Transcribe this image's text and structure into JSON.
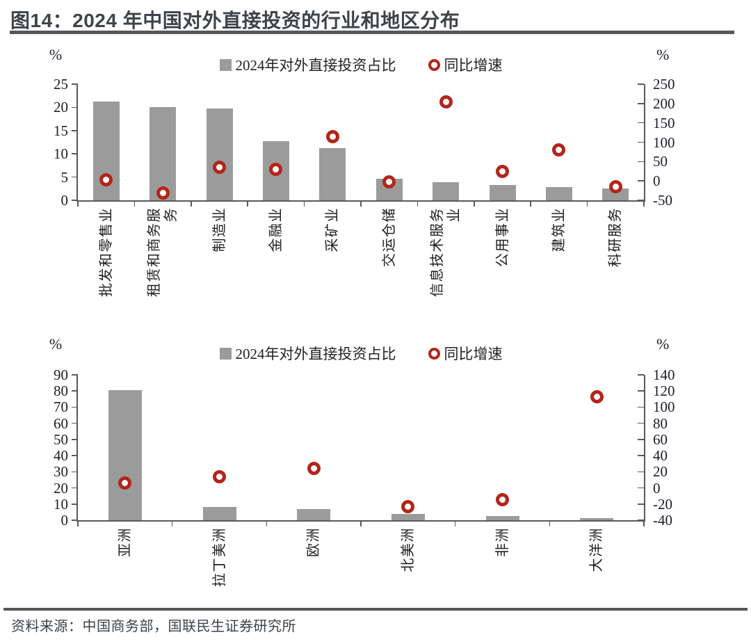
{
  "header": {
    "title": "图14：2024 年中国对外直接投资的行业和地区分布"
  },
  "footer": {
    "source": "资料来源：中国商务部，国联民生证券研究所"
  },
  "colors": {
    "bar": "#9b9b9b",
    "marker_ring": "#b3251a",
    "axis_line": "#595959",
    "tick_text": "#1c1c28",
    "label_text": "#1e1e1e",
    "title_text": "#3f4347",
    "rule": "#55575b"
  },
  "chart_data": [
    {
      "type": "bar",
      "name": "industry-distribution",
      "title": "2024年中国对外直接投资的行业分布",
      "legend": {
        "bar": "2024年对外直接投资占比",
        "marker": "同比增速"
      },
      "left_axis": {
        "label": "%",
        "min": 0,
        "max": 25,
        "step": 5
      },
      "right_axis": {
        "label": "%",
        "min": -50,
        "max": 250,
        "step": 50
      },
      "grid": false,
      "legend_position": "top-center",
      "categories": [
        "批发和零售业",
        "租赁和商务服\n务",
        "制造业",
        "金融业",
        "采矿业",
        "交运仓储",
        "信息技术服务\n业",
        "公用事业",
        "建筑业",
        "科研服务"
      ],
      "series": [
        {
          "name": "2024年对外直接投资占比",
          "type": "bar",
          "axis": "left",
          "unit": "%",
          "values": [
            21.3,
            20.0,
            19.8,
            12.7,
            11.3,
            4.6,
            3.9,
            3.3,
            2.9,
            2.6
          ]
        },
        {
          "name": "同比增速",
          "type": "scatter",
          "axis": "right",
          "unit": "%",
          "values": [
            3,
            -31,
            36,
            30,
            115,
            -3,
            205,
            25,
            80,
            -15
          ]
        }
      ]
    },
    {
      "type": "bar",
      "name": "region-distribution",
      "title": "2024年中国对外直接投资的地区分布",
      "legend": {
        "bar": "2024年对外直接投资占比",
        "marker": "同比增速"
      },
      "left_axis": {
        "label": "%",
        "min": 0,
        "max": 90,
        "step": 10
      },
      "right_axis": {
        "label": "%",
        "min": -40,
        "max": 140,
        "step": 20
      },
      "grid": false,
      "legend_position": "top-center",
      "categories": [
        "亚洲",
        "拉丁美洲",
        "欧洲",
        "北美洲",
        "非洲",
        "大洋洲"
      ],
      "series": [
        {
          "name": "2024年对外直接投资占比",
          "type": "bar",
          "axis": "left",
          "unit": "%",
          "values": [
            80.5,
            8.3,
            6.9,
            3.9,
            2.6,
            1.2
          ]
        },
        {
          "name": "同比增速",
          "type": "scatter",
          "axis": "right",
          "unit": "%",
          "values": [
            6,
            14,
            24,
            -23,
            -15,
            113
          ]
        }
      ]
    }
  ]
}
